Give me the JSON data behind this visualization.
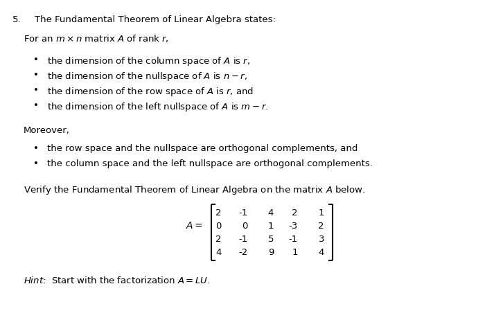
{
  "bg_color": "#ffffff",
  "fig_width": 7.0,
  "fig_height": 4.62,
  "dpi": 100,
  "number": "5.",
  "title": "The Fundamental Theorem of Linear Algebra states:",
  "intro": "For an $m \\times n$ matrix $A$ of rank $r$,",
  "bullets1": [
    "the dimension of the column space of $A$ is $r$,",
    "the dimension of the nullspace of $A$ is $n - r$,",
    "the dimension of the row space of $A$ is $r$, and",
    "the dimension of the left nullspace of $A$ is $m - r$."
  ],
  "moreover": "Moreover,",
  "bullets2": [
    "the row space and the nullspace are orthogonal complements, and",
    "the column space and the left nullspace are orthogonal complements."
  ],
  "verify_text": "Verify the Fundamental Theorem of Linear Algebra on the matrix $A$ below.",
  "matrix_rows": [
    [
      "2",
      "-1",
      "4",
      "2",
      "1"
    ],
    [
      "0",
      "0",
      "1",
      "-3",
      "2"
    ],
    [
      "2",
      "-1",
      "5",
      "-1",
      "3"
    ],
    [
      "4",
      "-2",
      "9",
      "1",
      "4"
    ]
  ],
  "font_size": 9.5
}
